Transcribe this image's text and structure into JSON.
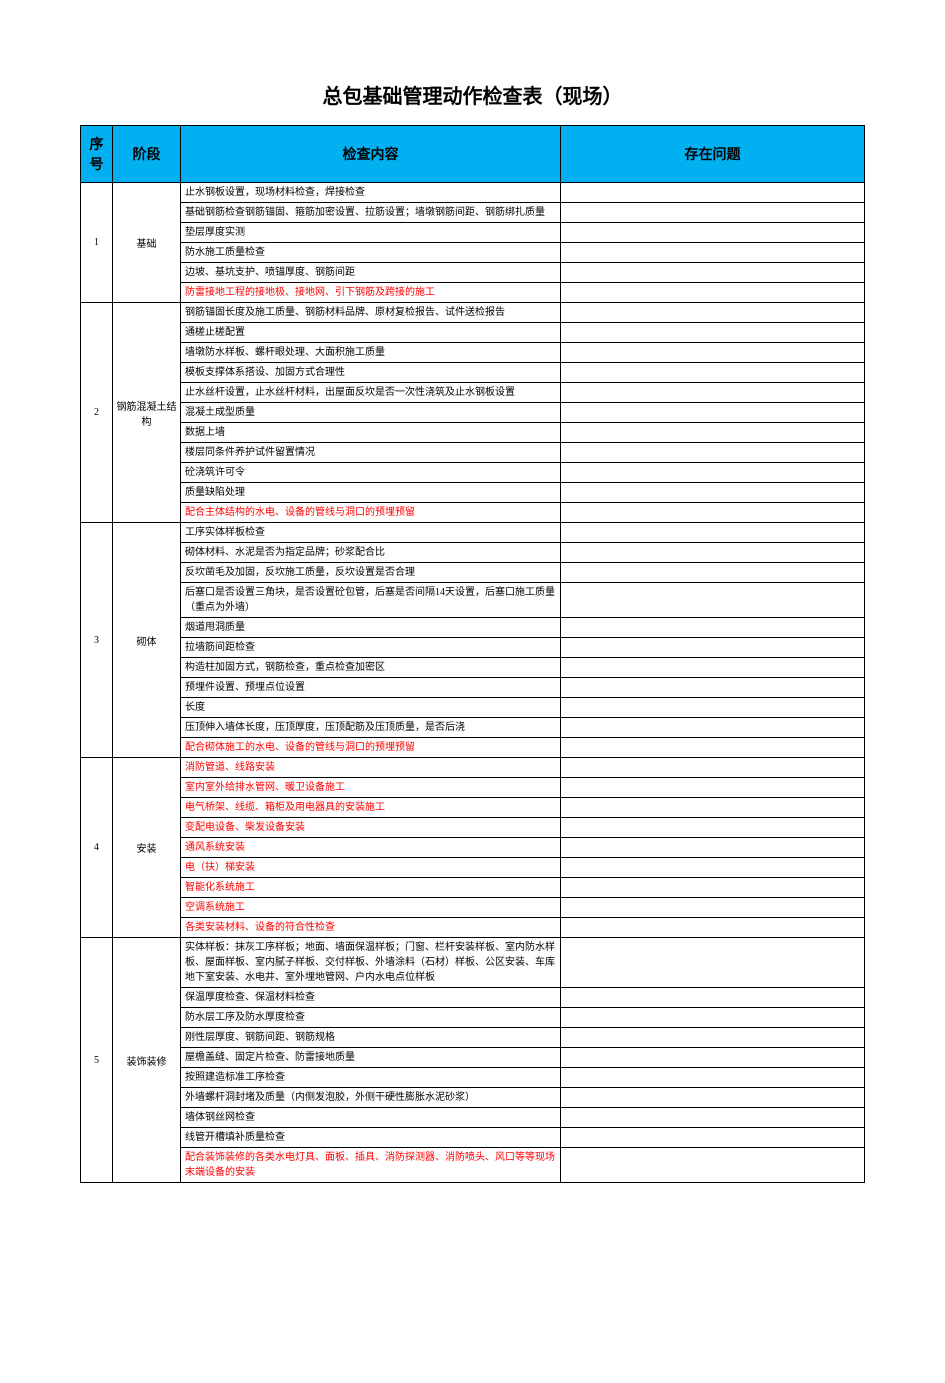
{
  "title": "总包基础管理动作检查表（现场）",
  "colors": {
    "header_bg": "#00b0f0",
    "highlight": "#ff0000",
    "text": "#000000",
    "border": "#000000",
    "background": "#ffffff"
  },
  "headers": {
    "seq": "序号",
    "stage": "阶段",
    "content": "检查内容",
    "issue": "存在问题"
  },
  "stages": [
    {
      "seq": "1",
      "name": "基础",
      "items": [
        {
          "text": "止水钢板设置，现场材料检查，焊接检查",
          "hl": false
        },
        {
          "text": "基础钢筋检查钢筋锚固、箍筋加密设置、拉筋设置；墙墩钢筋间距、钢筋绑扎质量",
          "hl": false
        },
        {
          "text": "垫层厚度实测",
          "hl": false
        },
        {
          "text": "防水施工质量检查",
          "hl": false
        },
        {
          "text": "边坡、基坑支护、喷锚厚度、钢筋间距",
          "hl": false
        },
        {
          "text": "防雷接地工程的接地极、接地网、引下钢筋及跨接的施工",
          "hl": true
        }
      ]
    },
    {
      "seq": "2",
      "name": "钢筋混凝土结构",
      "items": [
        {
          "text": "钢筋锚固长度及施工质量、钢筋材料品牌、原材复检报告、试件送检报告",
          "hl": false
        },
        {
          "text": "通槎止槎配置",
          "hl": false
        },
        {
          "text": "墙墩防水样板、螺杆眼处理、大面积施工质量",
          "hl": false
        },
        {
          "text": "模板支撑体系搭设、加固方式合理性",
          "hl": false
        },
        {
          "text": "止水丝杆设置，止水丝杆材料，出屋面反坎是否一次性浇筑及止水钢板设置",
          "hl": false
        },
        {
          "text": "混凝土成型质量",
          "hl": false
        },
        {
          "text": "数据上墙",
          "hl": false
        },
        {
          "text": "楼层同条件养护试件留置情况",
          "hl": false
        },
        {
          "text": "砼浇筑许可令",
          "hl": false
        },
        {
          "text": "质量缺陷处理",
          "hl": false
        },
        {
          "text": "配合主体结构的水电、设备的管线与洞口的预埋预留",
          "hl": true
        }
      ]
    },
    {
      "seq": "3",
      "name": "砌体",
      "items": [
        {
          "text": "工序实体样板检查",
          "hl": false
        },
        {
          "text": "砌体材料、水泥是否为指定品牌；砂浆配合比",
          "hl": false
        },
        {
          "text": "反坎凿毛及加固，反坎施工质量，反坎设置是否合理",
          "hl": false
        },
        {
          "text": "后塞口是否设置三角块，是否设置砼包管，后塞是否间隔14天设置，后塞口施工质量（重点为外墙）",
          "hl": false
        },
        {
          "text": "烟道甩洞质量",
          "hl": false
        },
        {
          "text": "拉墙筋间距检查",
          "hl": false
        },
        {
          "text": "构造柱加固方式，钢筋检查，重点检查加密区",
          "hl": false
        },
        {
          "text": "预埋件设置、预埋点位设置",
          "hl": false
        },
        {
          "text": "长度",
          "hl": false
        },
        {
          "text": "压顶伸入墙体长度，压顶厚度，压顶配筋及压顶质量，是否后浇",
          "hl": false
        },
        {
          "text": "配合砌体施工的水电、设备的管线与洞口的预埋预留",
          "hl": true
        }
      ]
    },
    {
      "seq": "4",
      "name": "安装",
      "items": [
        {
          "text": "消防管道、线路安装",
          "hl": true
        },
        {
          "text": "室内室外给排水管网、暖卫设备施工",
          "hl": true
        },
        {
          "text": "电气桥架、线缆、箱柜及用电器具的安装施工",
          "hl": true
        },
        {
          "text": "变配电设备、柴发设备安装",
          "hl": true
        },
        {
          "text": "通风系统安装",
          "hl": true
        },
        {
          "text": "电（扶）梯安装",
          "hl": true
        },
        {
          "text": "智能化系统施工",
          "hl": true
        },
        {
          "text": "空调系统施工",
          "hl": true
        },
        {
          "text": "各类安装材料、设备的符合性检查",
          "hl": true
        }
      ]
    },
    {
      "seq": "5",
      "name": "装饰装修",
      "items": [
        {
          "text": "实体样板：抹灰工序样板；地面、墙面保温样板；门窗、栏杆安装样板、室内防水样板、屋面样板、室内腻子样板、交付样板、外墙涂料（石材）样板、公区安装、车库地下室安装、水电井、室外埋地管网、户内水电点位样板",
          "hl": false
        },
        {
          "text": "保温厚度检查、保温材料检查",
          "hl": false
        },
        {
          "text": "防水层工序及防水厚度检查",
          "hl": false
        },
        {
          "text": "刚性层厚度、钢筋间距、钢筋规格",
          "hl": false
        },
        {
          "text": "屋檐盖缝、固定片检查、防雷接地质量",
          "hl": false
        },
        {
          "text": "按照建造标准工序检查",
          "hl": false
        },
        {
          "text": "外墙螺杆洞封堵及质量（内侧发泡胶，外侧干硬性膨胀水泥砂浆）",
          "hl": false
        },
        {
          "text": "墙体钢丝网检查",
          "hl": false
        },
        {
          "text": "线管开槽填补质量检查",
          "hl": false
        },
        {
          "text": "配合装饰装修的各类水电灯具、面板、插具、消防探测器、消防喷头、风口等等现场末端设备的安装",
          "hl": true
        }
      ]
    }
  ]
}
